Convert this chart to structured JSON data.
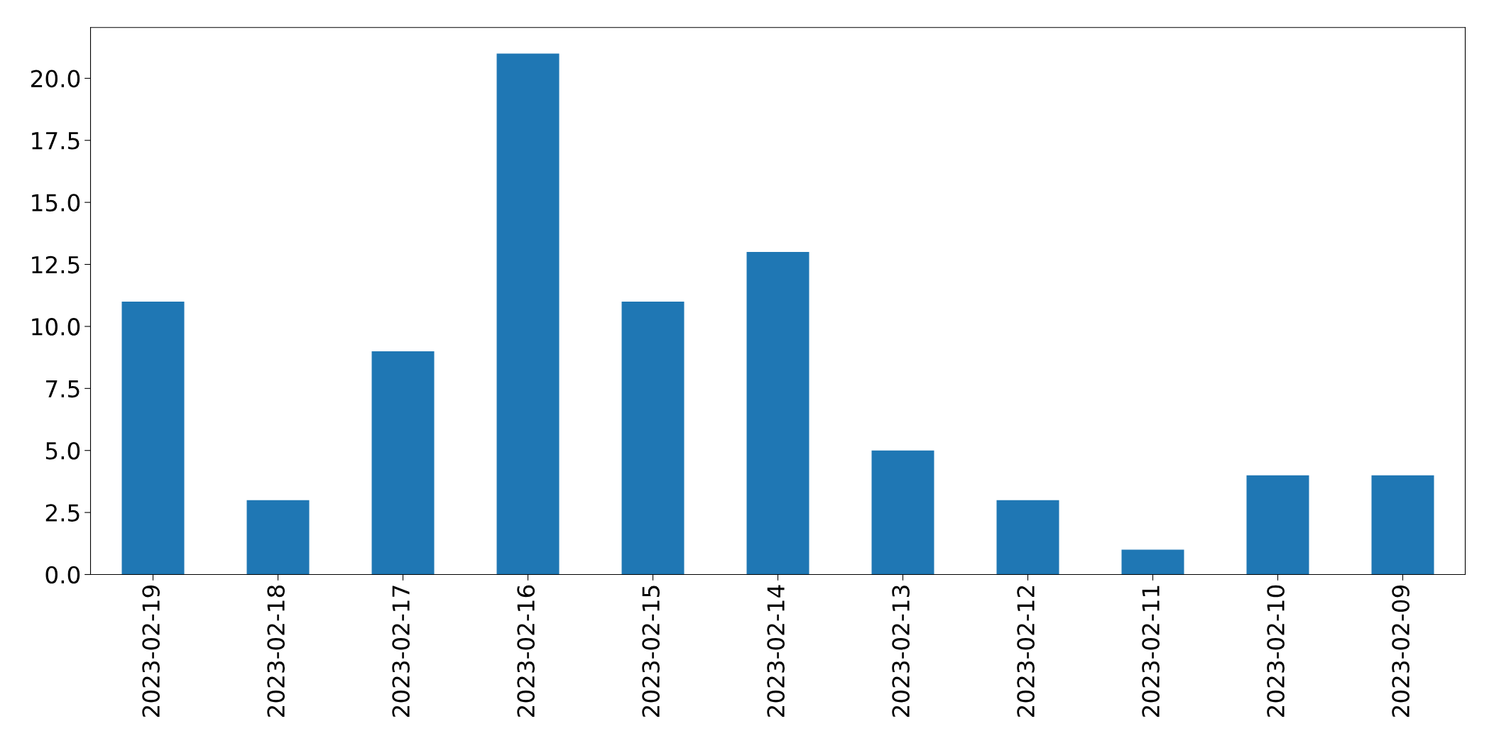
{
  "chart_data": {
    "type": "bar",
    "categories": [
      "2023-02-19",
      "2023-02-18",
      "2023-02-17",
      "2023-02-16",
      "2023-02-15",
      "2023-02-14",
      "2023-02-13",
      "2023-02-12",
      "2023-02-11",
      "2023-02-10",
      "2023-02-09"
    ],
    "values": [
      11,
      3,
      9,
      21,
      11,
      13,
      5,
      3,
      1,
      4,
      4
    ],
    "color": "#1f77b4",
    "ylim": [
      0,
      22.05
    ],
    "yticks": [
      {
        "value": 0,
        "label": "0.0"
      },
      {
        "value": 2.5,
        "label": "2.5"
      },
      {
        "value": 5,
        "label": "5.0"
      },
      {
        "value": 7.5,
        "label": "7.5"
      },
      {
        "value": 10,
        "label": "10.0"
      },
      {
        "value": 12.5,
        "label": "12.5"
      },
      {
        "value": 15,
        "label": "15.0"
      },
      {
        "value": 17.5,
        "label": "17.5"
      },
      {
        "value": 20,
        "label": "20.0"
      }
    ],
    "grid": false,
    "legend": false
  }
}
